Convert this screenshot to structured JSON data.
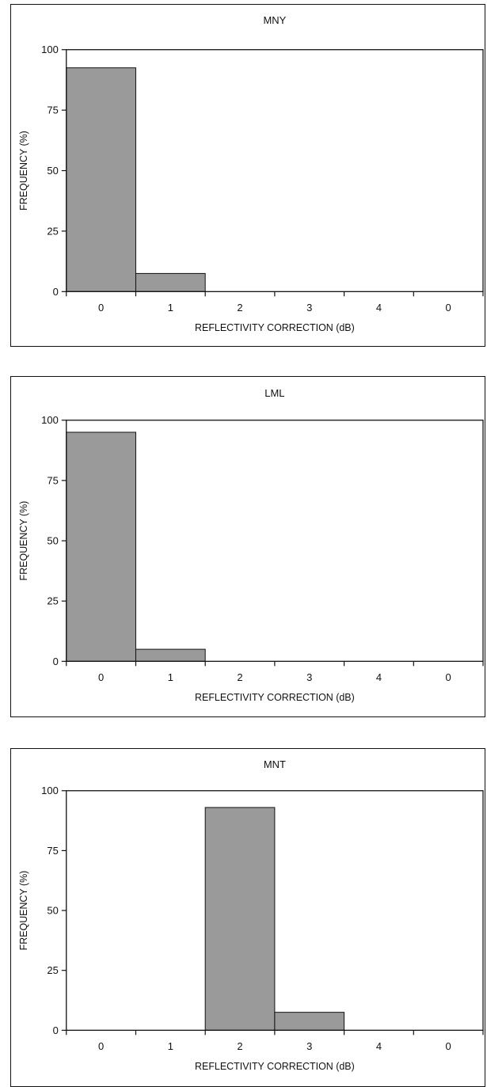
{
  "chart_data": [
    {
      "type": "bar",
      "title": "MNY",
      "xlabel": "REFLECTIVITY CORRECTION (dB)",
      "ylabel": "FREQUENCY (%)",
      "categories": [
        "0",
        "1",
        "2",
        "3",
        "4",
        "0"
      ],
      "values": [
        92.5,
        7.5,
        0,
        0,
        0,
        0
      ],
      "ylim": [
        0,
        100
      ],
      "yticks": [
        "0",
        "25",
        "50",
        "75",
        "100"
      ],
      "grid": false,
      "bar_color": "#9a9a9a"
    },
    {
      "type": "bar",
      "title": "LML",
      "xlabel": "REFLECTIVITY CORRECTION (dB)",
      "ylabel": "FREQUENCY (%)",
      "categories": [
        "0",
        "1",
        "2",
        "3",
        "4",
        "0"
      ],
      "values": [
        95,
        5,
        0,
        0,
        0,
        0
      ],
      "ylim": [
        0,
        100
      ],
      "yticks": [
        "0",
        "25",
        "50",
        "75",
        "100"
      ],
      "grid": false,
      "bar_color": "#9a9a9a"
    },
    {
      "type": "bar",
      "title": "MNT",
      "xlabel": "REFLECTIVITY CORRECTION (dB)",
      "ylabel": "FREQUENCY (%)",
      "categories": [
        "0",
        "1",
        "2",
        "3",
        "4",
        "0"
      ],
      "values": [
        0,
        0,
        93,
        7.5,
        0,
        0
      ],
      "ylim": [
        0,
        100
      ],
      "yticks": [
        "0",
        "25",
        "50",
        "75",
        "100"
      ],
      "grid": false,
      "bar_color": "#9a9a9a"
    }
  ]
}
